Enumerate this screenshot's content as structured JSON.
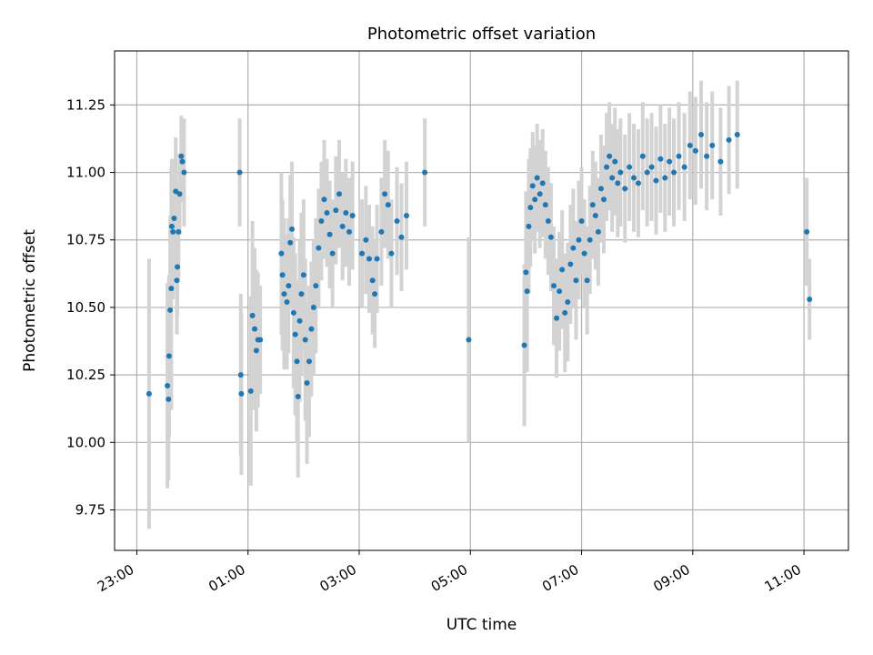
{
  "chart_data": {
    "type": "scatter",
    "title": "Photometric offset variation",
    "xlabel": "UTC time",
    "ylabel": "Photometric offset",
    "x_ticks": [
      "23:00",
      "01:00",
      "03:00",
      "05:00",
      "07:00",
      "09:00",
      "11:00"
    ],
    "y_ticks": [
      "9.75",
      "10.00",
      "10.25",
      "10.50",
      "10.75",
      "11.00",
      "11.25"
    ],
    "xlim": [
      22.6,
      35.8
    ],
    "ylim": [
      9.6,
      11.45
    ],
    "grid": true,
    "colors": {
      "point": "#1f77b4",
      "errorbar": "#d3d3d3",
      "grid": "#b0b0b0"
    },
    "points": [
      {
        "x": 23.22,
        "y": 10.18,
        "err": 0.5
      },
      {
        "x": 23.55,
        "y": 10.21,
        "err": 0.38
      },
      {
        "x": 23.57,
        "y": 10.16,
        "err": 0.3
      },
      {
        "x": 23.58,
        "y": 10.32,
        "err": 0.3
      },
      {
        "x": 23.6,
        "y": 10.49,
        "err": 0.35
      },
      {
        "x": 23.62,
        "y": 10.57,
        "err": 0.45
      },
      {
        "x": 23.63,
        "y": 10.8,
        "err": 0.25
      },
      {
        "x": 23.65,
        "y": 10.78,
        "err": 0.25
      },
      {
        "x": 23.67,
        "y": 10.83,
        "err": 0.22
      },
      {
        "x": 23.7,
        "y": 10.93,
        "err": 0.2
      },
      {
        "x": 23.72,
        "y": 10.6,
        "err": 0.2
      },
      {
        "x": 23.73,
        "y": 10.65,
        "err": 0.18
      },
      {
        "x": 23.75,
        "y": 10.78,
        "err": 0.18
      },
      {
        "x": 23.77,
        "y": 10.92,
        "err": 0.15
      },
      {
        "x": 23.8,
        "y": 11.06,
        "err": 0.15
      },
      {
        "x": 23.82,
        "y": 11.04,
        "err": 0.15
      },
      {
        "x": 23.85,
        "y": 11.0,
        "err": 0.2
      },
      {
        "x": 24.85,
        "y": 11.0,
        "err": 0.2
      },
      {
        "x": 24.87,
        "y": 10.25,
        "err": 0.3
      },
      {
        "x": 24.88,
        "y": 10.18,
        "err": 0.3
      },
      {
        "x": 25.05,
        "y": 10.19,
        "err": 0.35
      },
      {
        "x": 25.08,
        "y": 10.47,
        "err": 0.35
      },
      {
        "x": 25.12,
        "y": 10.42,
        "err": 0.3
      },
      {
        "x": 25.15,
        "y": 10.34,
        "err": 0.3
      },
      {
        "x": 25.18,
        "y": 10.38,
        "err": 0.25
      },
      {
        "x": 25.22,
        "y": 10.38,
        "err": 0.2
      },
      {
        "x": 25.6,
        "y": 10.7,
        "err": 0.3
      },
      {
        "x": 25.62,
        "y": 10.62,
        "err": 0.28
      },
      {
        "x": 25.65,
        "y": 10.55,
        "err": 0.28
      },
      {
        "x": 25.7,
        "y": 10.52,
        "err": 0.25
      },
      {
        "x": 25.73,
        "y": 10.58,
        "err": 0.25
      },
      {
        "x": 25.76,
        "y": 10.74,
        "err": 0.25
      },
      {
        "x": 25.79,
        "y": 10.79,
        "err": 0.25
      },
      {
        "x": 25.82,
        "y": 10.48,
        "err": 0.28
      },
      {
        "x": 25.85,
        "y": 10.4,
        "err": 0.3
      },
      {
        "x": 25.88,
        "y": 10.3,
        "err": 0.3
      },
      {
        "x": 25.9,
        "y": 10.17,
        "err": 0.3
      },
      {
        "x": 25.93,
        "y": 10.45,
        "err": 0.3
      },
      {
        "x": 25.96,
        "y": 10.55,
        "err": 0.3
      },
      {
        "x": 26.0,
        "y": 10.62,
        "err": 0.28
      },
      {
        "x": 26.03,
        "y": 10.38,
        "err": 0.3
      },
      {
        "x": 26.06,
        "y": 10.22,
        "err": 0.3
      },
      {
        "x": 26.1,
        "y": 10.3,
        "err": 0.28
      },
      {
        "x": 26.14,
        "y": 10.42,
        "err": 0.25
      },
      {
        "x": 26.18,
        "y": 10.5,
        "err": 0.25
      },
      {
        "x": 26.22,
        "y": 10.58,
        "err": 0.25
      },
      {
        "x": 26.27,
        "y": 10.72,
        "err": 0.22
      },
      {
        "x": 26.32,
        "y": 10.82,
        "err": 0.22
      },
      {
        "x": 26.37,
        "y": 10.9,
        "err": 0.22
      },
      {
        "x": 26.42,
        "y": 10.85,
        "err": 0.2
      },
      {
        "x": 26.47,
        "y": 10.77,
        "err": 0.2
      },
      {
        "x": 26.52,
        "y": 10.7,
        "err": 0.2
      },
      {
        "x": 26.58,
        "y": 10.86,
        "err": 0.2
      },
      {
        "x": 26.64,
        "y": 10.92,
        "err": 0.2
      },
      {
        "x": 26.7,
        "y": 10.8,
        "err": 0.2
      },
      {
        "x": 26.76,
        "y": 10.85,
        "err": 0.2
      },
      {
        "x": 26.82,
        "y": 10.78,
        "err": 0.2
      },
      {
        "x": 26.88,
        "y": 10.84,
        "err": 0.2
      },
      {
        "x": 27.05,
        "y": 10.7,
        "err": 0.2
      },
      {
        "x": 27.12,
        "y": 10.75,
        "err": 0.2
      },
      {
        "x": 27.18,
        "y": 10.68,
        "err": 0.2
      },
      {
        "x": 27.24,
        "y": 10.6,
        "err": 0.2
      },
      {
        "x": 27.28,
        "y": 10.55,
        "err": 0.2
      },
      {
        "x": 27.32,
        "y": 10.68,
        "err": 0.2
      },
      {
        "x": 27.4,
        "y": 10.78,
        "err": 0.2
      },
      {
        "x": 27.46,
        "y": 10.92,
        "err": 0.2
      },
      {
        "x": 27.52,
        "y": 10.88,
        "err": 0.2
      },
      {
        "x": 27.58,
        "y": 10.7,
        "err": 0.2
      },
      {
        "x": 27.68,
        "y": 10.82,
        "err": 0.2
      },
      {
        "x": 27.76,
        "y": 10.76,
        "err": 0.2
      },
      {
        "x": 27.85,
        "y": 10.84,
        "err": 0.2
      },
      {
        "x": 28.18,
        "y": 11.0,
        "err": 0.2
      },
      {
        "x": 28.97,
        "y": 10.38,
        "err": 0.38
      },
      {
        "x": 29.97,
        "y": 10.36,
        "err": 0.3
      },
      {
        "x": 30.0,
        "y": 10.63,
        "err": 0.3
      },
      {
        "x": 30.02,
        "y": 10.56,
        "err": 0.3
      },
      {
        "x": 30.05,
        "y": 10.8,
        "err": 0.25
      },
      {
        "x": 30.08,
        "y": 10.87,
        "err": 0.22
      },
      {
        "x": 30.12,
        "y": 10.95,
        "err": 0.2
      },
      {
        "x": 30.16,
        "y": 10.9,
        "err": 0.2
      },
      {
        "x": 30.2,
        "y": 10.98,
        "err": 0.2
      },
      {
        "x": 30.25,
        "y": 10.92,
        "err": 0.2
      },
      {
        "x": 30.3,
        "y": 10.96,
        "err": 0.2
      },
      {
        "x": 30.35,
        "y": 10.88,
        "err": 0.2
      },
      {
        "x": 30.4,
        "y": 10.82,
        "err": 0.2
      },
      {
        "x": 30.45,
        "y": 10.76,
        "err": 0.2
      },
      {
        "x": 30.5,
        "y": 10.58,
        "err": 0.22
      },
      {
        "x": 30.55,
        "y": 10.46,
        "err": 0.22
      },
      {
        "x": 30.6,
        "y": 10.56,
        "err": 0.22
      },
      {
        "x": 30.65,
        "y": 10.64,
        "err": 0.22
      },
      {
        "x": 30.7,
        "y": 10.48,
        "err": 0.22
      },
      {
        "x": 30.75,
        "y": 10.52,
        "err": 0.22
      },
      {
        "x": 30.8,
        "y": 10.66,
        "err": 0.22
      },
      {
        "x": 30.85,
        "y": 10.72,
        "err": 0.22
      },
      {
        "x": 30.9,
        "y": 10.6,
        "err": 0.22
      },
      {
        "x": 30.95,
        "y": 10.75,
        "err": 0.22
      },
      {
        "x": 31.0,
        "y": 10.82,
        "err": 0.2
      },
      {
        "x": 31.05,
        "y": 10.7,
        "err": 0.2
      },
      {
        "x": 31.1,
        "y": 10.6,
        "err": 0.2
      },
      {
        "x": 31.15,
        "y": 10.75,
        "err": 0.2
      },
      {
        "x": 31.2,
        "y": 10.88,
        "err": 0.2
      },
      {
        "x": 31.25,
        "y": 10.84,
        "err": 0.2
      },
      {
        "x": 31.3,
        "y": 10.78,
        "err": 0.2
      },
      {
        "x": 31.35,
        "y": 10.94,
        "err": 0.2
      },
      {
        "x": 31.4,
        "y": 10.9,
        "err": 0.2
      },
      {
        "x": 31.45,
        "y": 11.02,
        "err": 0.2
      },
      {
        "x": 31.5,
        "y": 11.06,
        "err": 0.2
      },
      {
        "x": 31.55,
        "y": 10.98,
        "err": 0.2
      },
      {
        "x": 31.6,
        "y": 11.04,
        "err": 0.2
      },
      {
        "x": 31.65,
        "y": 10.96,
        "err": 0.2
      },
      {
        "x": 31.7,
        "y": 11.0,
        "err": 0.2
      },
      {
        "x": 31.78,
        "y": 10.94,
        "err": 0.2
      },
      {
        "x": 31.86,
        "y": 11.02,
        "err": 0.2
      },
      {
        "x": 31.94,
        "y": 10.98,
        "err": 0.2
      },
      {
        "x": 32.02,
        "y": 10.96,
        "err": 0.2
      },
      {
        "x": 32.1,
        "y": 11.06,
        "err": 0.2
      },
      {
        "x": 32.18,
        "y": 11.0,
        "err": 0.2
      },
      {
        "x": 32.26,
        "y": 11.02,
        "err": 0.2
      },
      {
        "x": 32.34,
        "y": 10.97,
        "err": 0.2
      },
      {
        "x": 32.42,
        "y": 11.05,
        "err": 0.2
      },
      {
        "x": 32.5,
        "y": 10.98,
        "err": 0.2
      },
      {
        "x": 32.58,
        "y": 11.04,
        "err": 0.2
      },
      {
        "x": 32.66,
        "y": 11.0,
        "err": 0.2
      },
      {
        "x": 32.75,
        "y": 11.06,
        "err": 0.2
      },
      {
        "x": 32.85,
        "y": 11.02,
        "err": 0.2
      },
      {
        "x": 32.95,
        "y": 11.1,
        "err": 0.2
      },
      {
        "x": 33.05,
        "y": 11.08,
        "err": 0.2
      },
      {
        "x": 33.15,
        "y": 11.14,
        "err": 0.2
      },
      {
        "x": 33.25,
        "y": 11.06,
        "err": 0.2
      },
      {
        "x": 33.35,
        "y": 11.1,
        "err": 0.2
      },
      {
        "x": 33.5,
        "y": 11.04,
        "err": 0.2
      },
      {
        "x": 33.65,
        "y": 11.12,
        "err": 0.2
      },
      {
        "x": 33.8,
        "y": 11.14,
        "err": 0.2
      },
      {
        "x": 35.05,
        "y": 10.78,
        "err": 0.2
      },
      {
        "x": 35.1,
        "y": 10.53,
        "err": 0.15
      }
    ]
  }
}
